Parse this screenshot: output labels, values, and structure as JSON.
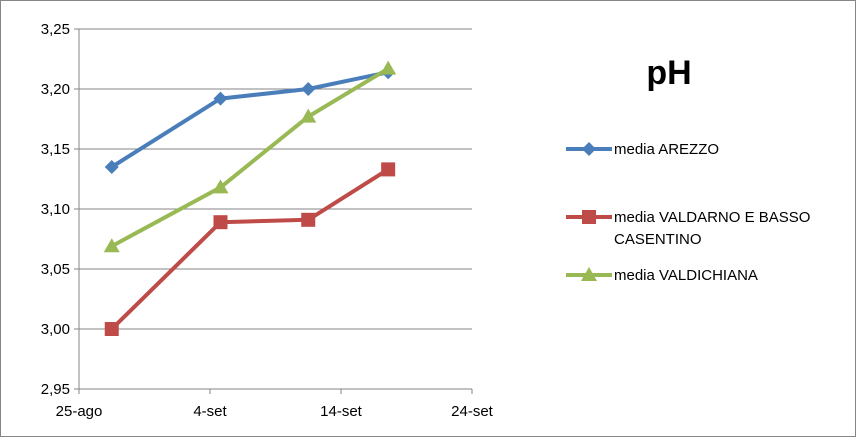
{
  "chart_data": {
    "type": "line",
    "title": "pH",
    "xlabel": "",
    "ylabel": "",
    "x_ticks": [
      "25-ago",
      "4-set",
      "14-set",
      "24-set"
    ],
    "x_tick_days": [
      0,
      10,
      20,
      30
    ],
    "y_ticks": [
      "2,95",
      "3,00",
      "3,05",
      "3,10",
      "3,15",
      "3,20",
      "3,25"
    ],
    "y_tick_values": [
      2.95,
      3.0,
      3.05,
      3.1,
      3.15,
      3.2,
      3.25
    ],
    "ylim": [
      2.95,
      3.25
    ],
    "xlim_days": [
      0,
      30
    ],
    "grid": "horizontal",
    "legend_position": "right",
    "series": [
      {
        "name": "media AREZZO",
        "color": "#4A7EBB",
        "marker": "diamond",
        "x": [
          "27-ago",
          "5-set",
          "12-set",
          "18-set"
        ],
        "x_days": [
          2.5,
          10.8,
          17.5,
          23.6
        ],
        "values": [
          3.135,
          3.192,
          3.2,
          3.214
        ]
      },
      {
        "name_lines": [
          "media VALDARNO E BASSO",
          "CASENTINO"
        ],
        "color": "#BE4B48",
        "marker": "square",
        "x": [
          "27-ago",
          "5-set",
          "12-set",
          "18-set"
        ],
        "x_days": [
          2.5,
          10.8,
          17.5,
          23.6
        ],
        "values": [
          3.0,
          3.089,
          3.091,
          3.133
        ]
      },
      {
        "name": "media VALDICHIANA",
        "color": "#98B954",
        "marker": "triangle",
        "x": [
          "27-ago",
          "5-set",
          "12-set",
          "18-set"
        ],
        "x_days": [
          2.5,
          10.8,
          17.5,
          23.6
        ],
        "values": [
          3.069,
          3.118,
          3.177,
          3.217
        ]
      }
    ]
  }
}
